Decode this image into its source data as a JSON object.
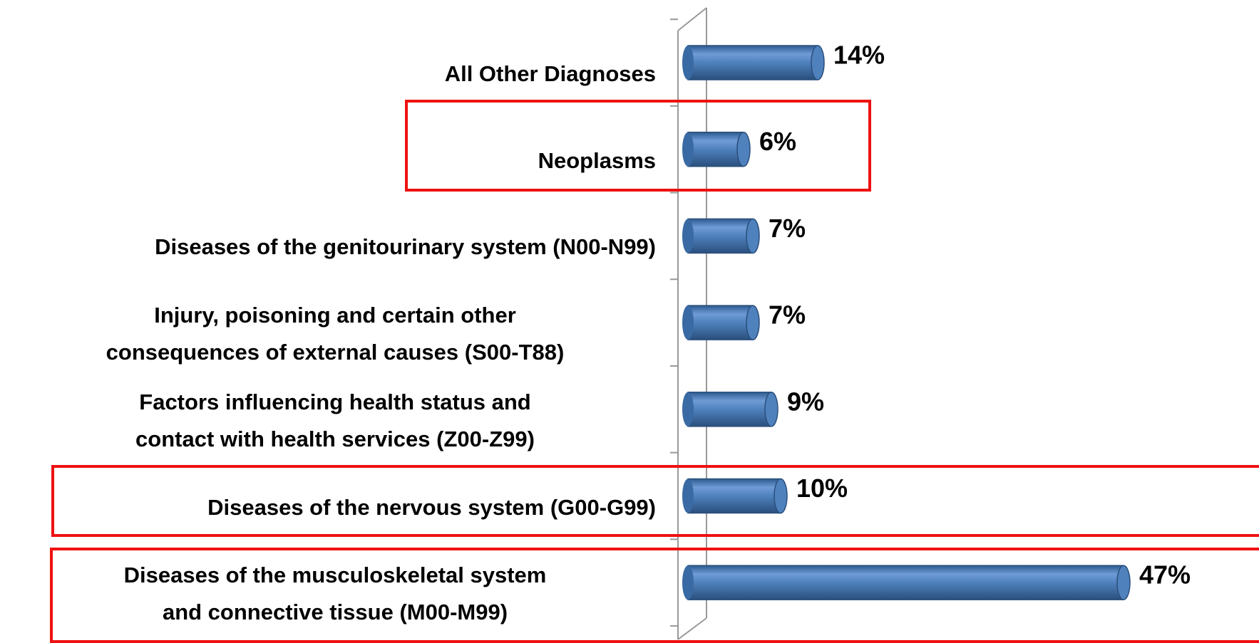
{
  "chart_data": {
    "type": "bar",
    "orientation": "horizontal",
    "categories": [
      "All Other Diagnoses",
      "Neoplasms",
      "Diseases of the genitourinary system (N00-N99)",
      "Injury, poisoning and certain other consequences of external causes (S00-T88)",
      "Factors influencing health status and contact with health services (Z00-Z99)",
      "Diseases of the nervous system (G00-G99)",
      "Diseases of the musculoskeletal system and connective tissue (M00-M99)"
    ],
    "values": [
      14,
      6,
      7,
      7,
      9,
      10,
      47
    ],
    "value_labels": [
      "14%",
      "6%",
      "7%",
      "7%",
      "9%",
      "10%",
      "47%"
    ],
    "color": "#4f81bd"
  }
}
